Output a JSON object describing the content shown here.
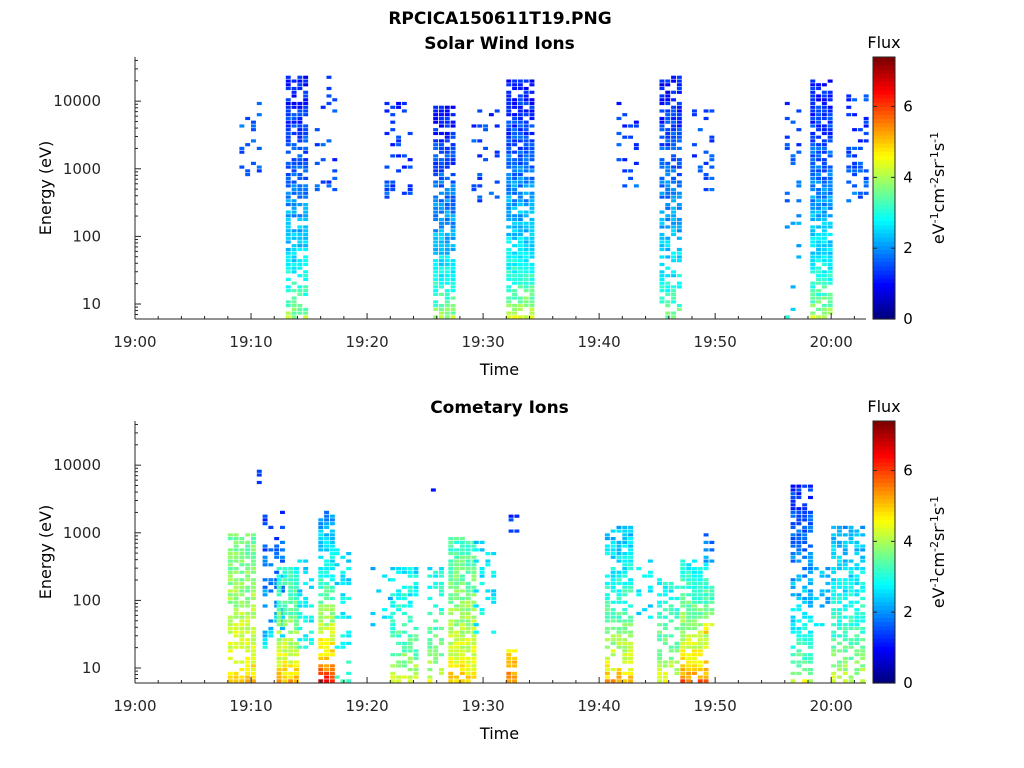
{
  "figure": {
    "title": "RPCICA150611T19.PNG",
    "colorbar_label": "Flux",
    "colorbar_unit": "eV-1cm-2sr-1s-1",
    "colorbar_ticks": [
      "0",
      "2",
      "4",
      "6"
    ]
  },
  "chart_data": [
    {
      "type": "heatmap",
      "title": "Solar Wind Ions",
      "xlabel": "Time",
      "ylabel": "Energy (eV)",
      "x_ticks": [
        "19:00",
        "19:10",
        "19:20",
        "19:30",
        "19:40",
        "19:50",
        "20:00"
      ],
      "y_ticks": [
        "10",
        "100",
        "1000",
        "10000"
      ],
      "y_scale": "log",
      "xlim": [
        "19:00",
        "20:03"
      ],
      "ylim": [
        6,
        45000
      ],
      "clim": [
        0,
        7.4
      ],
      "colormap": "jet",
      "bursts": [
        {
          "t0": 9.0,
          "t1": 11.0,
          "e_low": 500,
          "e_high": 10000,
          "c_low": 1.3,
          "c_high": 1.7,
          "density": 0.25
        },
        {
          "t0": 13.0,
          "t1": 14.8,
          "e_low": 6,
          "e_high": 25000,
          "c_low": 4.2,
          "c_high": 1.0,
          "density": 0.75
        },
        {
          "t0": 15.5,
          "t1": 17.5,
          "e_low": 400,
          "e_high": 25000,
          "c_low": 1.6,
          "c_high": 1.3,
          "density": 0.22
        },
        {
          "t0": 21.5,
          "t1": 23.8,
          "e_low": 350,
          "e_high": 10000,
          "c_low": 1.6,
          "c_high": 1.3,
          "density": 0.2
        },
        {
          "t0": 25.7,
          "t1": 27.5,
          "e_low": 6,
          "e_high": 9000,
          "c_low": 4.3,
          "c_high": 1.0,
          "density": 0.82
        },
        {
          "t0": 29.0,
          "t1": 31.2,
          "e_low": 300,
          "e_high": 8000,
          "c_low": 1.6,
          "c_high": 1.3,
          "density": 0.2
        },
        {
          "t0": 32.0,
          "t1": 34.3,
          "e_low": 6,
          "e_high": 20000,
          "c_low": 4.6,
          "c_high": 1.0,
          "density": 0.85
        },
        {
          "t0": 41.5,
          "t1": 43.5,
          "e_low": 500,
          "e_high": 10000,
          "c_low": 1.6,
          "c_high": 1.3,
          "density": 0.25
        },
        {
          "t0": 45.2,
          "t1": 47.0,
          "e_low": 6,
          "e_high": 25000,
          "c_low": 4.0,
          "c_high": 1.0,
          "density": 0.72
        },
        {
          "t0": 48.0,
          "t1": 50.0,
          "e_low": 300,
          "e_high": 8000,
          "c_low": 1.6,
          "c_high": 1.3,
          "density": 0.22
        },
        {
          "t0": 56.0,
          "t1": 57.5,
          "e_low": 6,
          "e_high": 10000,
          "c_low": 3.2,
          "c_high": 1.3,
          "density": 0.15
        },
        {
          "t0": 58.2,
          "t1": 60.2,
          "e_low": 6,
          "e_high": 20000,
          "c_low": 4.4,
          "c_high": 1.0,
          "density": 0.82
        },
        {
          "t0": 61.3,
          "t1": 63.0,
          "e_low": 300,
          "e_high": 12000,
          "c_low": 1.8,
          "c_high": 1.3,
          "density": 0.35
        }
      ]
    },
    {
      "type": "heatmap",
      "title": "Cometary Ions",
      "xlabel": "Time",
      "ylabel": "Energy (eV)",
      "x_ticks": [
        "19:00",
        "19:10",
        "19:20",
        "19:30",
        "19:40",
        "19:50",
        "20:00"
      ],
      "y_ticks": [
        "10",
        "100",
        "1000",
        "10000"
      ],
      "y_scale": "log",
      "xlim": [
        "19:00",
        "20:03"
      ],
      "ylim": [
        6,
        45000
      ],
      "clim": [
        0,
        7.4
      ],
      "colormap": "jet",
      "bursts": [
        {
          "t0": 8.0,
          "t1": 10.2,
          "e_low": 6,
          "e_high": 1000,
          "c_low": 5.2,
          "c_high": 3.5,
          "density": 0.8
        },
        {
          "t0": 10.5,
          "t1": 11.0,
          "e_low": 4000,
          "e_high": 9000,
          "c_low": 1.3,
          "c_high": 1.2,
          "density": 0.5
        },
        {
          "t0": 11.0,
          "t1": 12.8,
          "e_low": 20,
          "e_high": 2500,
          "c_low": 3.0,
          "c_high": 1.3,
          "density": 0.35
        },
        {
          "t0": 12.2,
          "t1": 13.8,
          "e_low": 6,
          "e_high": 300,
          "c_low": 5.6,
          "c_high": 3.0,
          "density": 0.78
        },
        {
          "t0": 14.0,
          "t1": 15.5,
          "e_low": 20,
          "e_high": 400,
          "c_low": 3.0,
          "c_high": 2.5,
          "density": 0.3
        },
        {
          "t0": 15.8,
          "t1": 17.2,
          "e_low": 6,
          "e_high": 2000,
          "c_low": 7.0,
          "c_high": 2.0,
          "density": 0.8
        },
        {
          "t0": 17.2,
          "t1": 18.5,
          "e_low": 6,
          "e_high": 600,
          "c_low": 3.2,
          "c_high": 2.5,
          "density": 0.3
        },
        {
          "t0": 20.3,
          "t1": 22.0,
          "e_low": 40,
          "e_high": 300,
          "c_low": 2.6,
          "c_high": 2.4,
          "density": 0.2
        },
        {
          "t0": 22.0,
          "t1": 24.2,
          "e_low": 6,
          "e_high": 300,
          "c_low": 4.6,
          "c_high": 2.6,
          "density": 0.55
        },
        {
          "t0": 25.2,
          "t1": 26.5,
          "e_low": 6,
          "e_high": 300,
          "c_low": 4.6,
          "c_high": 2.8,
          "density": 0.55
        },
        {
          "t0": 25.5,
          "t1": 26.0,
          "e_low": 2500,
          "e_high": 6000,
          "c_low": 1.3,
          "c_high": 1.2,
          "density": 0.5
        },
        {
          "t0": 27.0,
          "t1": 29.2,
          "e_low": 6,
          "e_high": 900,
          "c_low": 5.3,
          "c_high": 3.2,
          "density": 0.78
        },
        {
          "t0": 29.2,
          "t1": 31.0,
          "e_low": 30,
          "e_high": 800,
          "c_low": 3.0,
          "c_high": 2.5,
          "density": 0.3
        },
        {
          "t0": 32.0,
          "t1": 33.0,
          "e_low": 6,
          "e_high": 20,
          "c_low": 5.8,
          "c_high": 4.8,
          "density": 0.8
        },
        {
          "t0": 32.2,
          "t1": 33.0,
          "e_low": 1000,
          "e_high": 2500,
          "c_low": 1.3,
          "c_high": 1.2,
          "density": 0.4
        },
        {
          "t0": 40.5,
          "t1": 43.0,
          "e_low": 6,
          "e_high": 1200,
          "c_low": 5.6,
          "c_high": 2.3,
          "density": 0.72
        },
        {
          "t0": 43.2,
          "t1": 44.5,
          "e_low": 40,
          "e_high": 400,
          "c_low": 2.8,
          "c_high": 2.5,
          "density": 0.25
        },
        {
          "t0": 45.0,
          "t1": 47.0,
          "e_low": 6,
          "e_high": 200,
          "c_low": 4.8,
          "c_high": 2.8,
          "density": 0.55
        },
        {
          "t0": 47.0,
          "t1": 49.3,
          "e_low": 6,
          "e_high": 400,
          "c_low": 6.2,
          "c_high": 2.8,
          "density": 0.75
        },
        {
          "t0": 49.0,
          "t1": 50.0,
          "e_low": 30,
          "e_high": 1000,
          "c_low": 6.0,
          "c_high": 1.5,
          "density": 0.4
        },
        {
          "t0": 56.5,
          "t1": 58.5,
          "e_low": 6,
          "e_high": 5000,
          "c_low": 4.6,
          "c_high": 1.2,
          "density": 0.6
        },
        {
          "t0": 58.5,
          "t1": 60.0,
          "e_low": 40,
          "e_high": 300,
          "c_low": 2.6,
          "c_high": 2.2,
          "density": 0.25
        },
        {
          "t0": 60.0,
          "t1": 63.0,
          "e_low": 6,
          "e_high": 1200,
          "c_low": 4.6,
          "c_high": 2.2,
          "density": 0.7
        }
      ]
    }
  ]
}
